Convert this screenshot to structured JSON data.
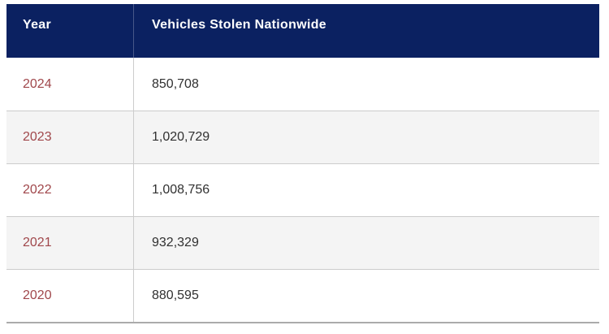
{
  "table": {
    "columns": [
      {
        "label": "Year"
      },
      {
        "label": "Vehicles Stolen Nationwide"
      }
    ],
    "rows": [
      {
        "year": "2024",
        "value": "850,708"
      },
      {
        "year": "2023",
        "value": "1,020,729"
      },
      {
        "year": "2022",
        "value": "1,008,756"
      },
      {
        "year": "2021",
        "value": "932,329"
      },
      {
        "year": "2020",
        "value": "880,595"
      }
    ]
  },
  "colors": {
    "header-bg": "#0b2161",
    "header-text": "#ffffff",
    "year-text": "#a0474b",
    "value-text": "#303030",
    "row-bg": "#ffffff",
    "row-alt-bg": "#f4f4f4",
    "divider": "#cccccc",
    "bottom-border": "#ababab"
  }
}
